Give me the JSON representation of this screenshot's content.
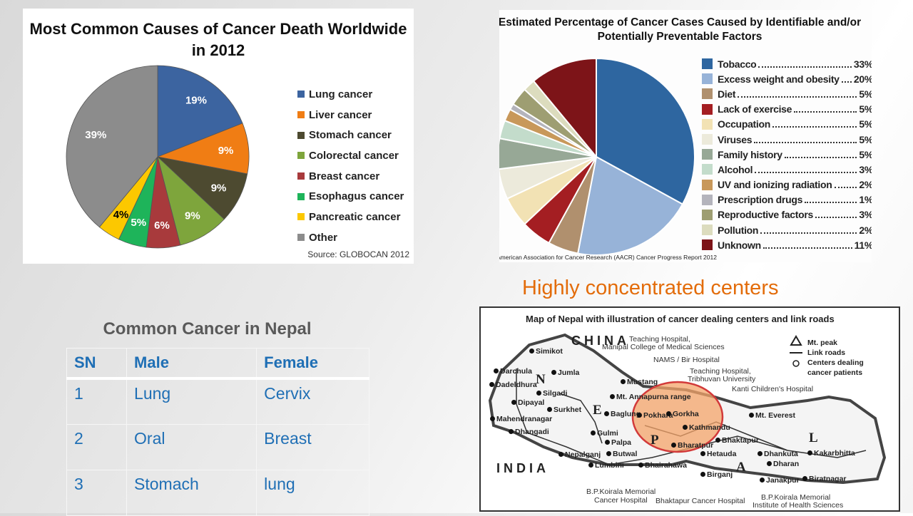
{
  "chart_data": [
    {
      "type": "pie",
      "title": "Most Common Causes of Cancer Death Worldwide in 2012",
      "source": "Source: GLOBOCAN 2012",
      "legend_position": "right",
      "labels": [
        "Lung cancer",
        "Liver cancer",
        "Stomach cancer",
        "Colorectal cancer",
        "Breast cancer",
        "Esophagus cancer",
        "Pancreatic cancer",
        "Other"
      ],
      "values": [
        19,
        9,
        9,
        9,
        6,
        5,
        4,
        39
      ],
      "value_labels": [
        "19%",
        "9%",
        "9%",
        "9%",
        "6%",
        "5%",
        "4%",
        "39%"
      ],
      "colors": [
        "#3c64a0",
        "#f07d14",
        "#4d4a30",
        "#7ea53c",
        "#a83a3c",
        "#1eb45a",
        "#fcc800",
        "#8c8c8c"
      ]
    },
    {
      "type": "pie",
      "title": "Estimated Percentage of Cancer Cases Caused by Identifiable and/or Potentially Preventable Factors",
      "source": "American Association for Cancer Research (AACR) Cancer Progress Report 2012",
      "legend_position": "right",
      "labels": [
        "Tobacco",
        "Excess weight and obesity",
        "Diet",
        "Lack of exercise",
        "Occupation",
        "Viruses",
        "Family history",
        "Alcohol",
        "UV and ionizing radiation",
        "Prescription drugs",
        "Reproductive factors",
        "Pollution",
        "Unknown"
      ],
      "values": [
        33,
        20,
        5,
        5,
        5,
        5,
        5,
        3,
        2,
        1,
        3,
        2,
        11
      ],
      "value_labels": [
        "33%",
        "20%",
        "5%",
        "5%",
        "5%",
        "5%",
        "5%",
        "3%",
        "2%",
        "1%",
        "3%",
        "2%",
        "11%"
      ],
      "colors": [
        "#2e66a0",
        "#97b3d8",
        "#b0906e",
        "#a41e22",
        "#f2e2b4",
        "#eceadb",
        "#97a896",
        "#c3dccb",
        "#c8985a",
        "#b4b4bc",
        "#9e9e72",
        "#dcdcbe",
        "#7d1418"
      ]
    }
  ],
  "heading": "Highly concentrated centers",
  "table": {
    "title": "Common Cancer in Nepal",
    "headers": [
      "SN",
      "Male",
      "Female"
    ],
    "rows": [
      [
        "1",
        "Lung",
        "Cervix"
      ],
      [
        "2",
        "Oral",
        "Breast"
      ],
      [
        "3",
        "Stomach",
        "lung"
      ]
    ]
  },
  "map": {
    "title": "Map of Nepal with illustration of cancer dealing centers and link roads",
    "legend": [
      "Mt. peak",
      "Link roads",
      "Centers dealing",
      "cancer patients"
    ],
    "labels": [
      "CHINA",
      "INDIA",
      "N",
      "E",
      "P",
      "A",
      "L",
      "Simikot",
      "Darchula",
      "Jumla",
      "Dadeldhura",
      "Silgadi",
      "Dipayal",
      "Surkhet",
      "Mahendranagar",
      "Dhangadi",
      "Nepalganj",
      "Mustang",
      "Mt. Annapurna range",
      "Baglung",
      "Pokhara",
      "Gorkha",
      "Kathmandu",
      "Gulmi",
      "Palpa",
      "Butwal",
      "Lumbini",
      "Bhairahawa",
      "Bharatpur",
      "Bhaktapur",
      "Hetauda",
      "Birganj",
      "Mt. Everest",
      "Dhankuta",
      "Dharan",
      "Kakarbhitta",
      "Janakpur",
      "Biratnagar"
    ],
    "callouts": [
      "Teaching Hospital,",
      "Manipal College of Medical Sciences",
      "NAMS / Bir Hospital",
      "Teaching Hospital,",
      "Tribhuvan University",
      "Kanti Children's Hospital",
      "B.P.Koirala Memorial",
      "Cancer Hospital",
      "Bhaktapur Cancer Hospital",
      "B.P.Koirala Memorial",
      "Institute of Health Sciences"
    ]
  }
}
